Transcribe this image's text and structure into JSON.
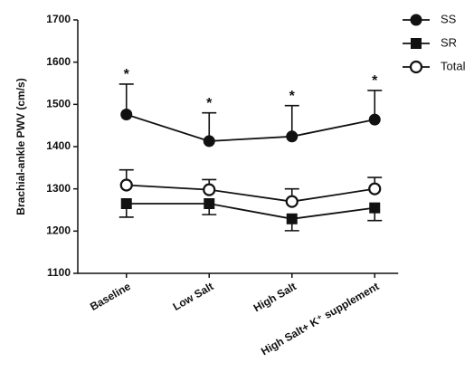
{
  "chart_data": {
    "type": "line",
    "y_label": "Brachial-ankle PWV (cm/s)",
    "categories": [
      "Baseline",
      "Low Salt",
      "High Salt",
      "High Salt+ K⁺ supplement"
    ],
    "series": [
      {
        "name": "SS",
        "color": "#111111",
        "marker": "filled-circle",
        "error_direction": "up",
        "values": [
          1476,
          1413,
          1424,
          1464
        ],
        "errors": [
          72,
          67,
          73,
          69
        ]
      },
      {
        "name": "SR",
        "color": "#111111",
        "marker": "filled-square",
        "error_direction": "down",
        "values": [
          1265,
          1265,
          1229,
          1255
        ],
        "errors": [
          32,
          26,
          28,
          30
        ]
      },
      {
        "name": "Total",
        "color": "#111111",
        "marker": "open-circle",
        "error_direction": "up",
        "values": [
          1309,
          1298,
          1270,
          1300
        ],
        "errors": [
          36,
          24,
          30,
          27
        ]
      }
    ],
    "annotations": [
      "*",
      "*",
      "*",
      "*"
    ],
    "ylim": [
      1100,
      1700
    ],
    "yticks": [
      1100,
      1200,
      1300,
      1400,
      1500,
      1600,
      1700
    ],
    "legend": "top-right"
  }
}
